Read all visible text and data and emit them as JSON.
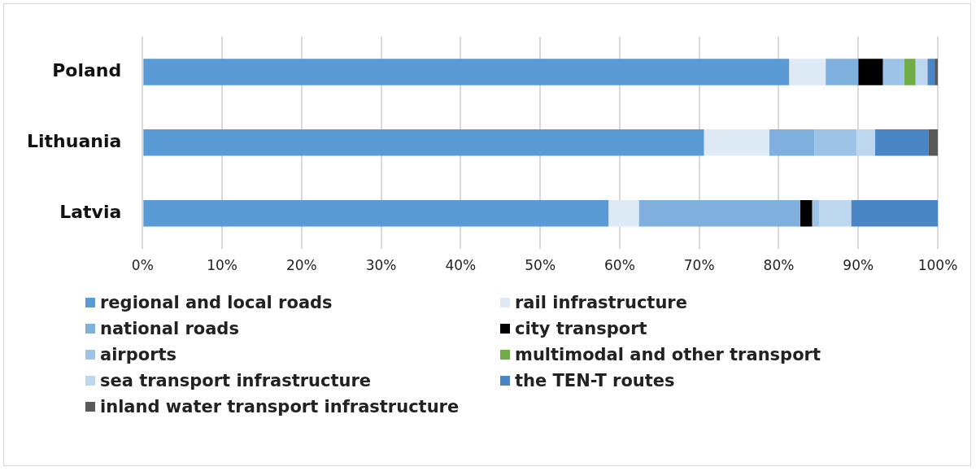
{
  "chart_data": {
    "type": "bar",
    "orientation": "horizontal",
    "stacked": true,
    "categories": [
      "Poland",
      "Lithuania",
      "Latvia"
    ],
    "series": [
      {
        "name": "regional and local roads",
        "color": "#5b9bd5",
        "values": [
          81.3,
          70.6,
          58.6
        ]
      },
      {
        "name": "rail infrastructure",
        "color": "#deebf7",
        "values": [
          4.6,
          8.2,
          3.8
        ]
      },
      {
        "name": "national roads",
        "color": "#7fb0de",
        "values": [
          4.1,
          5.7,
          20.3
        ]
      },
      {
        "name": "city transport",
        "color": "#000000",
        "values": [
          3.1,
          0,
          1.5
        ]
      },
      {
        "name": "airports",
        "color": "#9dc3e6",
        "values": [
          2.7,
          5.3,
          0.9
        ]
      },
      {
        "name": "multimodal and other transport",
        "color": "#70ad47",
        "values": [
          1.4,
          0,
          0
        ]
      },
      {
        "name": "sea transport infrastructure",
        "color": "#bdd7ee",
        "values": [
          1.5,
          2.3,
          4.0
        ]
      },
      {
        "name": "the TEN-T routes",
        "color": "#4a86c5",
        "values": [
          0.9,
          6.7,
          10.9
        ]
      },
      {
        "name": "inland water transport infrastructure",
        "color": "#595959",
        "values": [
          0.4,
          1.2,
          0
        ]
      }
    ],
    "xlim": [
      0,
      100
    ],
    "xticks": [
      {
        "value": 0,
        "label": "0%"
      },
      {
        "value": 10,
        "label": "10%"
      },
      {
        "value": 20,
        "label": "20%"
      },
      {
        "value": 30,
        "label": "30%"
      },
      {
        "value": 40,
        "label": "40%"
      },
      {
        "value": 50,
        "label": "50%"
      },
      {
        "value": 60,
        "label": "60%"
      },
      {
        "value": 70,
        "label": "70%"
      },
      {
        "value": 80,
        "label": "80%"
      },
      {
        "value": 90,
        "label": "90%"
      },
      {
        "value": 100,
        "label": "100%"
      }
    ],
    "grid": "x",
    "legend": "bottom"
  }
}
